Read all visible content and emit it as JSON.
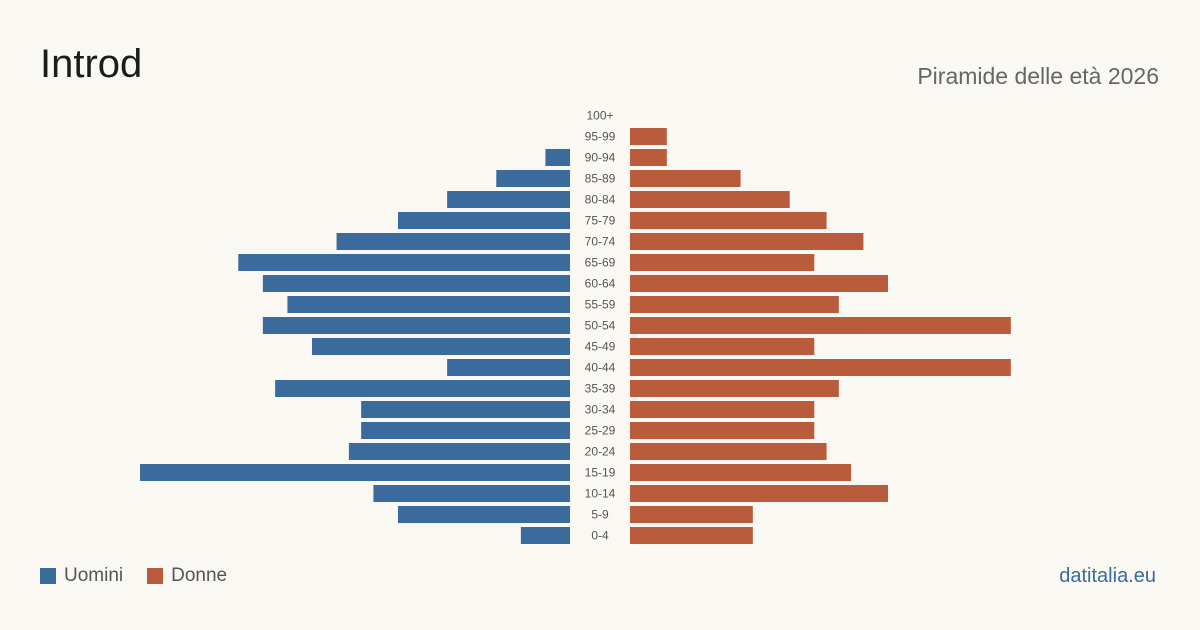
{
  "header": {
    "title": "Introd",
    "subtitle": "Piramide delle età 2026"
  },
  "legend": {
    "men_label": "Uomini",
    "women_label": "Donne"
  },
  "brand": "datitalia.eu",
  "colors": {
    "men": "#3b6a9c",
    "women": "#b95c3b",
    "background": "#faf8f3"
  },
  "chart_data": {
    "type": "bar",
    "orientation": "horizontal-pyramid",
    "categories": [
      "100+",
      "95-99",
      "90-94",
      "85-89",
      "80-84",
      "75-79",
      "70-74",
      "65-69",
      "60-64",
      "55-59",
      "50-54",
      "45-49",
      "40-44",
      "35-39",
      "30-34",
      "25-29",
      "20-24",
      "15-19",
      "10-14",
      "5-9",
      "0-4"
    ],
    "series": [
      {
        "name": "Uomini",
        "values": [
          0,
          0,
          2,
          6,
          10,
          14,
          19,
          27,
          25,
          23,
          25,
          21,
          10,
          24,
          17,
          17,
          18,
          35,
          16,
          14,
          4
        ]
      },
      {
        "name": "Donne",
        "values": [
          0,
          3,
          3,
          9,
          13,
          16,
          19,
          15,
          21,
          17,
          31,
          15,
          31,
          17,
          15,
          15,
          16,
          18,
          21,
          10,
          10
        ]
      }
    ],
    "title": "",
    "xlabel": "",
    "ylabel": "",
    "xlim": [
      0,
      35
    ],
    "grid": false,
    "legend_position": "bottom-left"
  }
}
